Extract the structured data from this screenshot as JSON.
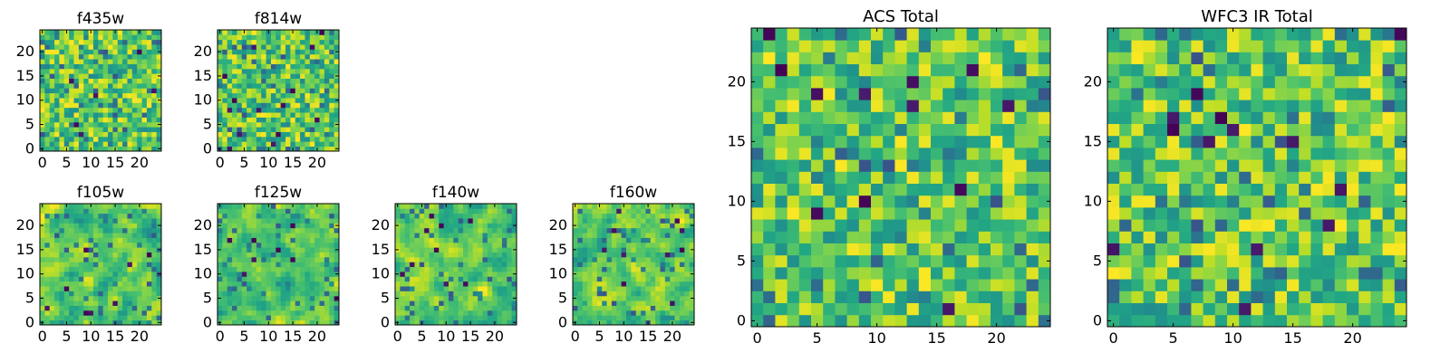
{
  "chart_data": [
    {
      "type": "heatmap",
      "title": "f435w",
      "grid_size": 25,
      "xlim": [
        0,
        24
      ],
      "ylim": [
        0,
        24
      ],
      "xticks": [
        0,
        5,
        10,
        15,
        20
      ],
      "yticks": [
        0,
        5,
        10,
        15,
        20
      ],
      "seed": 11,
      "noise_pattern": "fine",
      "dark_cells": 6
    },
    {
      "type": "heatmap",
      "title": "f814w",
      "grid_size": 25,
      "xlim": [
        0,
        24
      ],
      "ylim": [
        0,
        24
      ],
      "xticks": [
        0,
        5,
        10,
        15,
        20
      ],
      "yticks": [
        0,
        5,
        10,
        15,
        20
      ],
      "seed": 23,
      "noise_pattern": "fine",
      "dark_cells": 14
    },
    {
      "type": "heatmap",
      "title": "f105w",
      "grid_size": 25,
      "xlim": [
        0,
        24
      ],
      "ylim": [
        0,
        24
      ],
      "xticks": [
        0,
        5,
        10,
        15,
        20
      ],
      "yticks": [
        0,
        5,
        10,
        15,
        20
      ],
      "seed": 37,
      "noise_pattern": "smooth",
      "dark_cells": 8
    },
    {
      "type": "heatmap",
      "title": "f125w",
      "grid_size": 25,
      "xlim": [
        0,
        24
      ],
      "ylim": [
        0,
        24
      ],
      "xticks": [
        0,
        5,
        10,
        15,
        20
      ],
      "yticks": [
        0,
        5,
        10,
        15,
        20
      ],
      "seed": 41,
      "noise_pattern": "smooth",
      "dark_cells": 8
    },
    {
      "type": "heatmap",
      "title": "f140w",
      "grid_size": 25,
      "xlim": [
        0,
        24
      ],
      "ylim": [
        0,
        24
      ],
      "xticks": [
        0,
        5,
        10,
        15,
        20
      ],
      "yticks": [
        0,
        5,
        10,
        15,
        20
      ],
      "seed": 53,
      "noise_pattern": "smooth",
      "dark_cells": 9
    },
    {
      "type": "heatmap",
      "title": "f160w",
      "grid_size": 25,
      "xlim": [
        0,
        24
      ],
      "ylim": [
        0,
        24
      ],
      "xticks": [
        0,
        5,
        10,
        15,
        20
      ],
      "yticks": [
        0,
        5,
        10,
        15,
        20
      ],
      "seed": 67,
      "noise_pattern": "smooth",
      "dark_cells": 10
    },
    {
      "type": "heatmap",
      "title": "ACS Total",
      "grid_size": 25,
      "xlim": [
        0,
        24
      ],
      "ylim": [
        0,
        24
      ],
      "xticks": [
        0,
        5,
        10,
        15,
        20
      ],
      "yticks": [
        0,
        5,
        10,
        15,
        20
      ],
      "seed": 79,
      "noise_pattern": "fine",
      "dark_cells": 12
    },
    {
      "type": "heatmap",
      "title": "WFC3 IR Total",
      "grid_size": 25,
      "xlim": [
        0,
        24
      ],
      "ylim": [
        0,
        24
      ],
      "xticks": [
        0,
        5,
        10,
        15,
        20
      ],
      "yticks": [
        0,
        5,
        10,
        15,
        20
      ],
      "seed": 97,
      "noise_pattern": "fine",
      "dark_cells": 13
    }
  ],
  "colormap": "viridis"
}
